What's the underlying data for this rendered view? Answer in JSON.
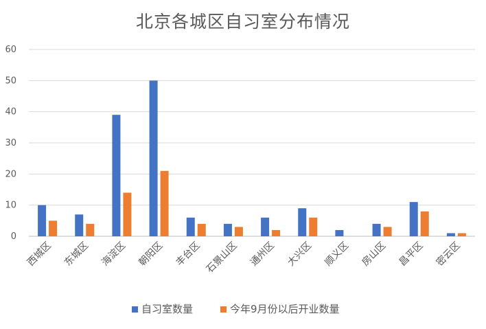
{
  "chart_data": {
    "type": "bar",
    "title": "北京各城区自习室分布情况",
    "xlabel": "",
    "ylabel": "",
    "ylim": [
      0,
      60
    ],
    "yticks": [
      0,
      10,
      20,
      30,
      40,
      50,
      60
    ],
    "grid": true,
    "legend_position": "bottom",
    "categories": [
      "西城区",
      "东城区",
      "海淀区",
      "朝阳区",
      "丰台区",
      "石景山区",
      "通州区",
      "大兴区",
      "顺义区",
      "房山区",
      "昌平区",
      "密云区"
    ],
    "series": [
      {
        "name": "自习室数量",
        "color": "#4472C4",
        "values": [
          10,
          7,
          39,
          50,
          6,
          4,
          6,
          9,
          2,
          4,
          11,
          1
        ]
      },
      {
        "name": "今年9月份以后开业数量",
        "color": "#ED7D31",
        "values": [
          5,
          4,
          14,
          21,
          4,
          3,
          2,
          6,
          0,
          3,
          8,
          1
        ]
      }
    ]
  }
}
